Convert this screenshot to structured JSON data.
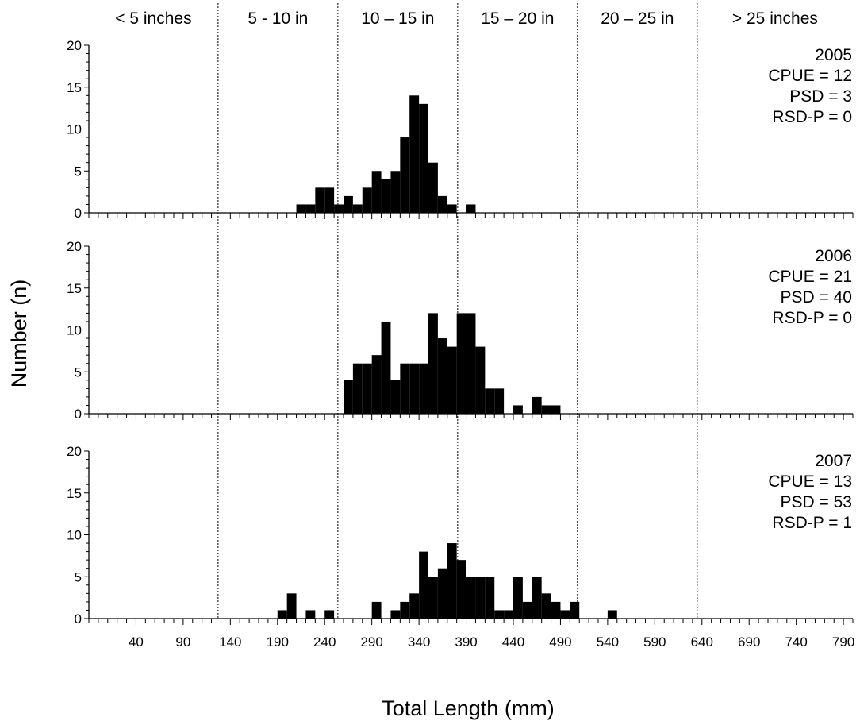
{
  "chart_data": {
    "type": "bar",
    "xlabel": "Total Length (mm)",
    "ylabel": "Number (n)",
    "size_classes": [
      "< 5 inches",
      "5 - 10 in",
      "10 – 15 in",
      "15 – 20 in",
      "20 – 25 in",
      "> 25 inches"
    ],
    "size_class_bounds_mm": [
      127,
      254,
      381,
      508,
      635
    ],
    "xlim": [
      -10,
      800
    ],
    "x_ticks": [
      40,
      90,
      140,
      190,
      240,
      290,
      340,
      390,
      440,
      490,
      540,
      590,
      640,
      690,
      740,
      790
    ],
    "x_tick_labels": [
      "40",
      "90",
      "140",
      "190",
      "240",
      "290",
      "340",
      "390",
      "440",
      "490",
      "540",
      "590",
      "640",
      "690",
      "740",
      "790"
    ],
    "bin_width_mm": 10,
    "ylim": [
      0,
      20
    ],
    "y_ticks": [
      0,
      5,
      10,
      15,
      20
    ],
    "y_tick_labels": [
      "0",
      "5",
      "10",
      "15",
      "20"
    ],
    "panels": [
      {
        "year": "2005",
        "stats": [
          "CPUE = 12",
          "PSD = 3",
          "RSD-P = 0"
        ],
        "bins": [
          {
            "x": 210,
            "count": 1
          },
          {
            "x": 220,
            "count": 1
          },
          {
            "x": 230,
            "count": 3
          },
          {
            "x": 240,
            "count": 3
          },
          {
            "x": 250,
            "count": 1
          },
          {
            "x": 260,
            "count": 2
          },
          {
            "x": 270,
            "count": 1
          },
          {
            "x": 280,
            "count": 3
          },
          {
            "x": 290,
            "count": 5
          },
          {
            "x": 300,
            "count": 4
          },
          {
            "x": 310,
            "count": 5
          },
          {
            "x": 320,
            "count": 9
          },
          {
            "x": 330,
            "count": 14
          },
          {
            "x": 340,
            "count": 13
          },
          {
            "x": 350,
            "count": 6
          },
          {
            "x": 360,
            "count": 2
          },
          {
            "x": 370,
            "count": 1
          },
          {
            "x": 390,
            "count": 1
          }
        ]
      },
      {
        "year": "2006",
        "stats": [
          "CPUE = 21",
          "PSD = 40",
          "RSD-P = 0"
        ],
        "bins": [
          {
            "x": 260,
            "count": 4
          },
          {
            "x": 270,
            "count": 6
          },
          {
            "x": 280,
            "count": 6
          },
          {
            "x": 290,
            "count": 7
          },
          {
            "x": 300,
            "count": 11
          },
          {
            "x": 310,
            "count": 4
          },
          {
            "x": 320,
            "count": 6
          },
          {
            "x": 330,
            "count": 6
          },
          {
            "x": 340,
            "count": 6
          },
          {
            "x": 350,
            "count": 12
          },
          {
            "x": 360,
            "count": 9
          },
          {
            "x": 370,
            "count": 8
          },
          {
            "x": 380,
            "count": 12
          },
          {
            "x": 390,
            "count": 12
          },
          {
            "x": 400,
            "count": 8
          },
          {
            "x": 410,
            "count": 3
          },
          {
            "x": 420,
            "count": 3
          },
          {
            "x": 440,
            "count": 1
          },
          {
            "x": 460,
            "count": 2
          },
          {
            "x": 470,
            "count": 1
          },
          {
            "x": 480,
            "count": 1
          }
        ]
      },
      {
        "year": "2007",
        "stats": [
          "CPUE = 13",
          "PSD = 53",
          "RSD-P = 1"
        ],
        "bins": [
          {
            "x": 190,
            "count": 1
          },
          {
            "x": 200,
            "count": 3
          },
          {
            "x": 220,
            "count": 1
          },
          {
            "x": 240,
            "count": 1
          },
          {
            "x": 290,
            "count": 2
          },
          {
            "x": 310,
            "count": 1
          },
          {
            "x": 320,
            "count": 2
          },
          {
            "x": 330,
            "count": 3
          },
          {
            "x": 340,
            "count": 8
          },
          {
            "x": 350,
            "count": 5
          },
          {
            "x": 360,
            "count": 6
          },
          {
            "x": 370,
            "count": 9
          },
          {
            "x": 380,
            "count": 7
          },
          {
            "x": 390,
            "count": 5
          },
          {
            "x": 400,
            "count": 5
          },
          {
            "x": 410,
            "count": 5
          },
          {
            "x": 420,
            "count": 1
          },
          {
            "x": 430,
            "count": 1
          },
          {
            "x": 440,
            "count": 5
          },
          {
            "x": 450,
            "count": 2
          },
          {
            "x": 460,
            "count": 5
          },
          {
            "x": 470,
            "count": 3
          },
          {
            "x": 480,
            "count": 2
          },
          {
            "x": 490,
            "count": 1
          },
          {
            "x": 500,
            "count": 2
          },
          {
            "x": 540,
            "count": 1
          }
        ]
      }
    ]
  },
  "colors": {
    "bar": "#000000",
    "axis": "#000000",
    "divider": "#000000",
    "background": "#ffffff"
  }
}
